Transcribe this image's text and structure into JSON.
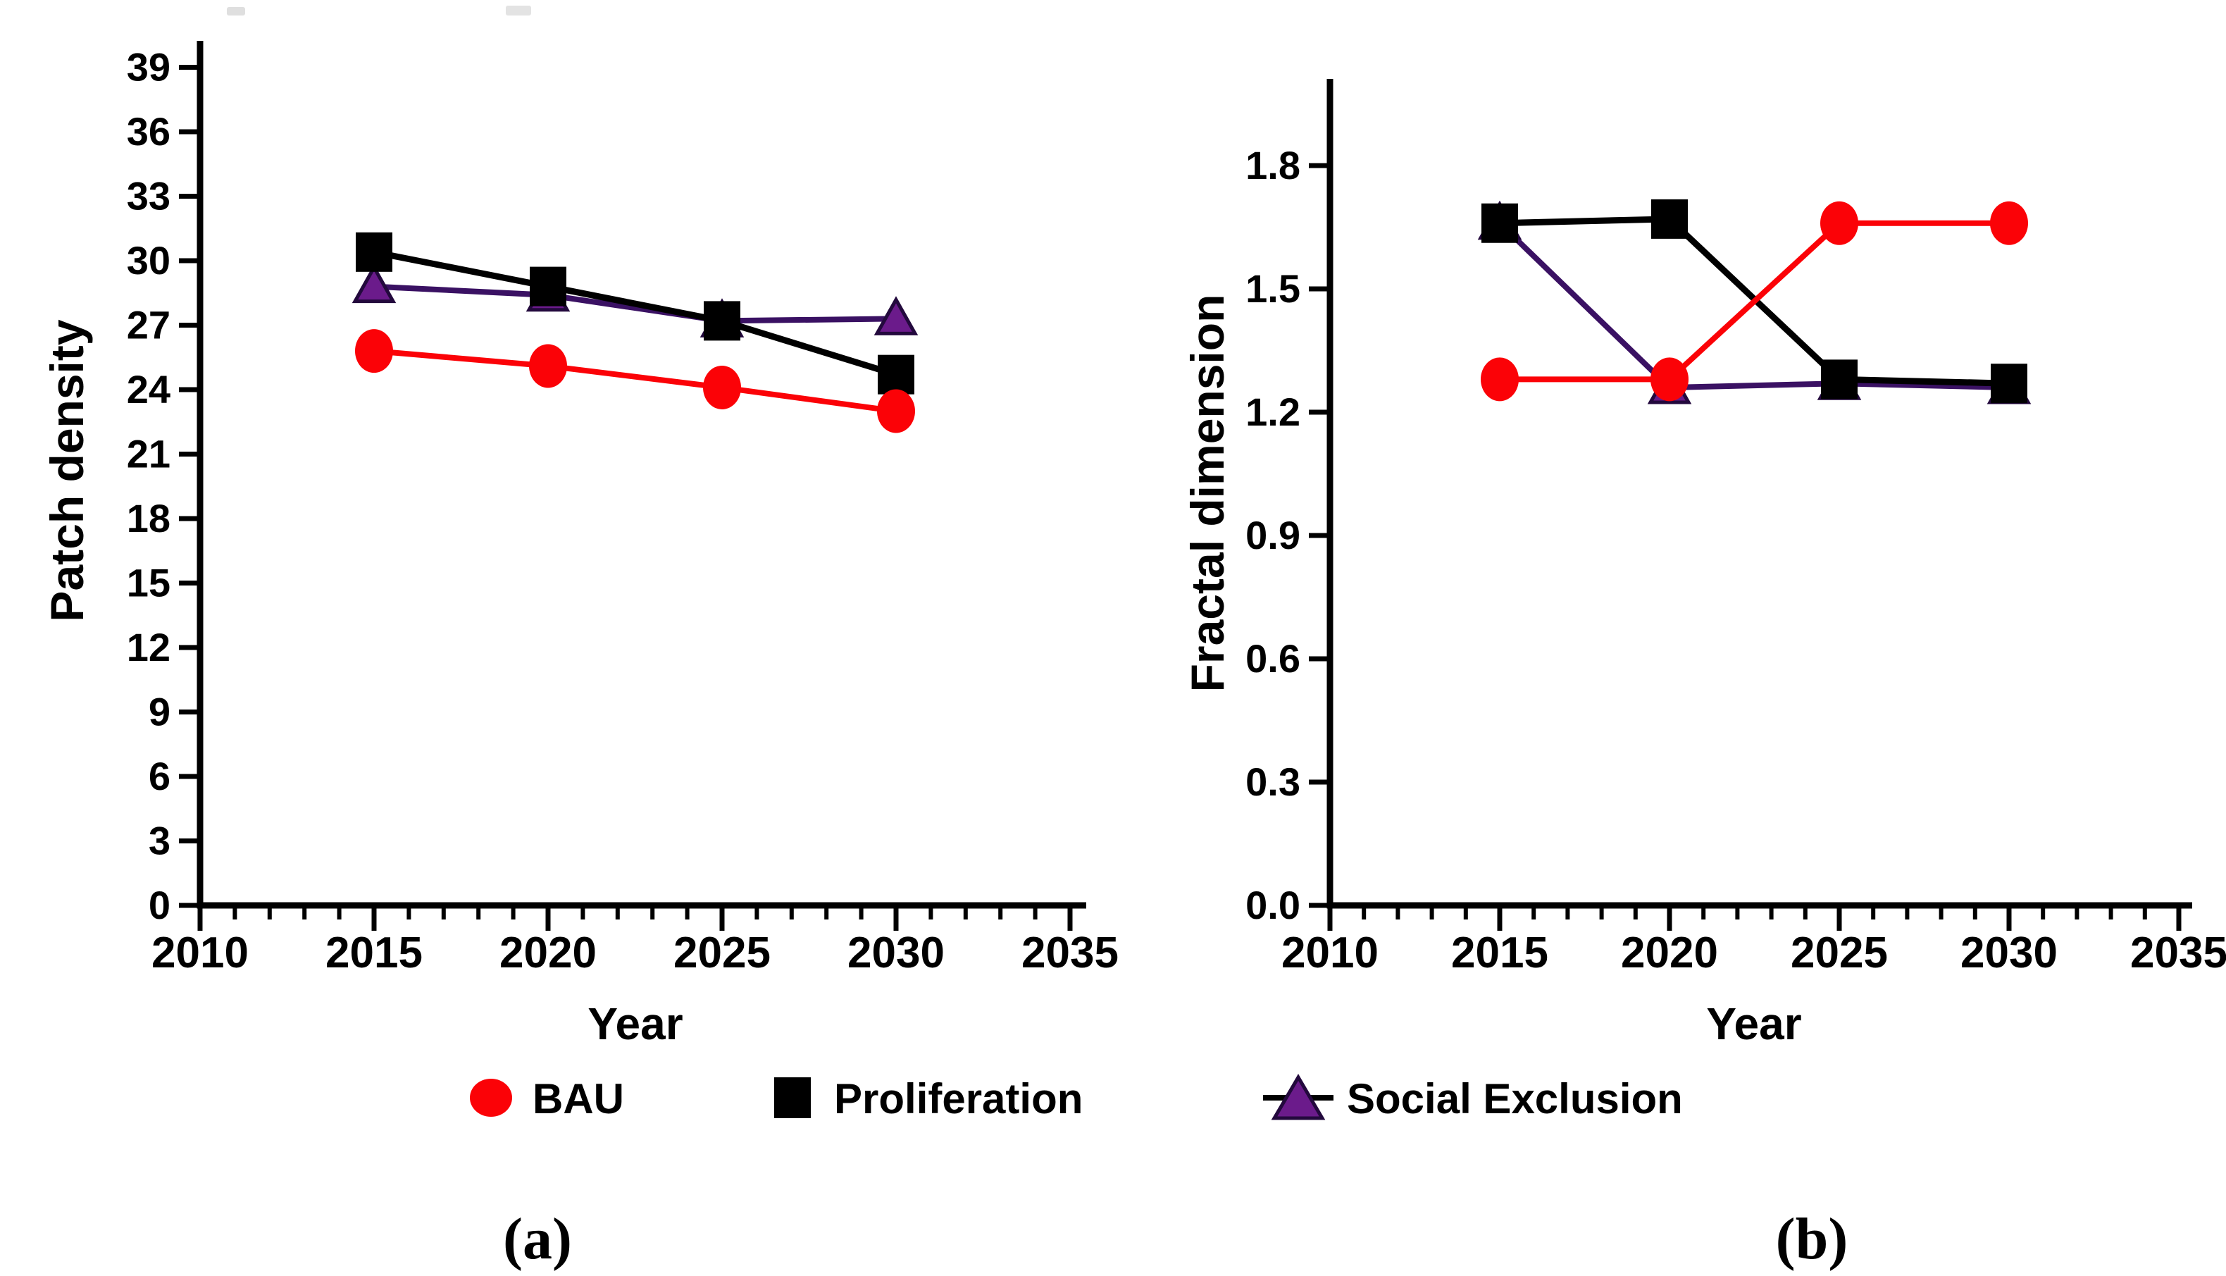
{
  "figure": {
    "background": "#ffffff",
    "panel_a_label": "(a)",
    "panel_b_label": "(b)",
    "legend": [
      {
        "label": "BAU",
        "marker": "circle",
        "color": "#fb0207",
        "line_color": "#fb0207"
      },
      {
        "label": "Proliferation",
        "marker": "square",
        "color": "#000000",
        "line_color": "#000000"
      },
      {
        "label": "Social Exclusion",
        "marker": "triangle",
        "color": "#6b1b8b",
        "line_color": "#3a1163"
      }
    ]
  },
  "chart_data": [
    {
      "type": "line",
      "panel": "a",
      "title": "",
      "xlabel": "Year",
      "ylabel": "Patch density",
      "x": [
        2015,
        2020,
        2025,
        2030
      ],
      "xlim": [
        2010,
        2035
      ],
      "ylim": [
        0,
        40
      ],
      "grid": false,
      "legend_position": "below",
      "xtick_values": [
        2010,
        2015,
        2020,
        2025,
        2030,
        2035
      ],
      "xtick_labels": [
        "2010",
        "2015",
        "2020",
        "2025",
        "2030",
        "2035"
      ],
      "minor_xtick_every_years": 1,
      "ytick_values": [
        0,
        3,
        6,
        9,
        12,
        15,
        18,
        21,
        24,
        27,
        30,
        33,
        36,
        39
      ],
      "ytick_labels": [
        "0",
        "3",
        "6",
        "9",
        "12",
        "15",
        "18",
        "21",
        "24",
        "27",
        "30",
        "33",
        "36",
        "39"
      ],
      "series": [
        {
          "name": "BAU",
          "values": [
            25.8,
            25.1,
            24.1,
            23.0
          ]
        },
        {
          "name": "Proliferation",
          "values": [
            30.4,
            28.8,
            27.2,
            24.7
          ]
        },
        {
          "name": "Social Exclusion",
          "values": [
            28.8,
            28.4,
            27.2,
            27.3
          ]
        }
      ]
    },
    {
      "type": "line",
      "panel": "b",
      "title": "",
      "xlabel": "Year",
      "ylabel": "Fractal dimension",
      "x": [
        2015,
        2020,
        2025,
        2030
      ],
      "xlim": [
        2010,
        2035
      ],
      "ylim": [
        0,
        2.0
      ],
      "grid": false,
      "legend_position": "below",
      "xtick_values": [
        2010,
        2015,
        2020,
        2025,
        2030,
        2035
      ],
      "xtick_labels": [
        "2010",
        "2015",
        "2020",
        "2025",
        "2030",
        "2035"
      ],
      "minor_xtick_every_years": 1,
      "ytick_values": [
        0,
        0.3,
        0.6,
        0.9,
        1.2,
        1.5,
        1.8
      ],
      "ytick_labels": [
        "0.0",
        "0.3",
        "0.6",
        "0.9",
        "1.2",
        "1.5",
        "1.8"
      ],
      "series": [
        {
          "name": "BAU",
          "values": [
            1.28,
            1.28,
            1.66,
            1.66
          ]
        },
        {
          "name": "Proliferation",
          "values": [
            1.66,
            1.67,
            1.28,
            1.27
          ]
        },
        {
          "name": "Social Exclusion",
          "values": [
            1.66,
            1.26,
            1.27,
            1.26
          ]
        }
      ]
    }
  ]
}
